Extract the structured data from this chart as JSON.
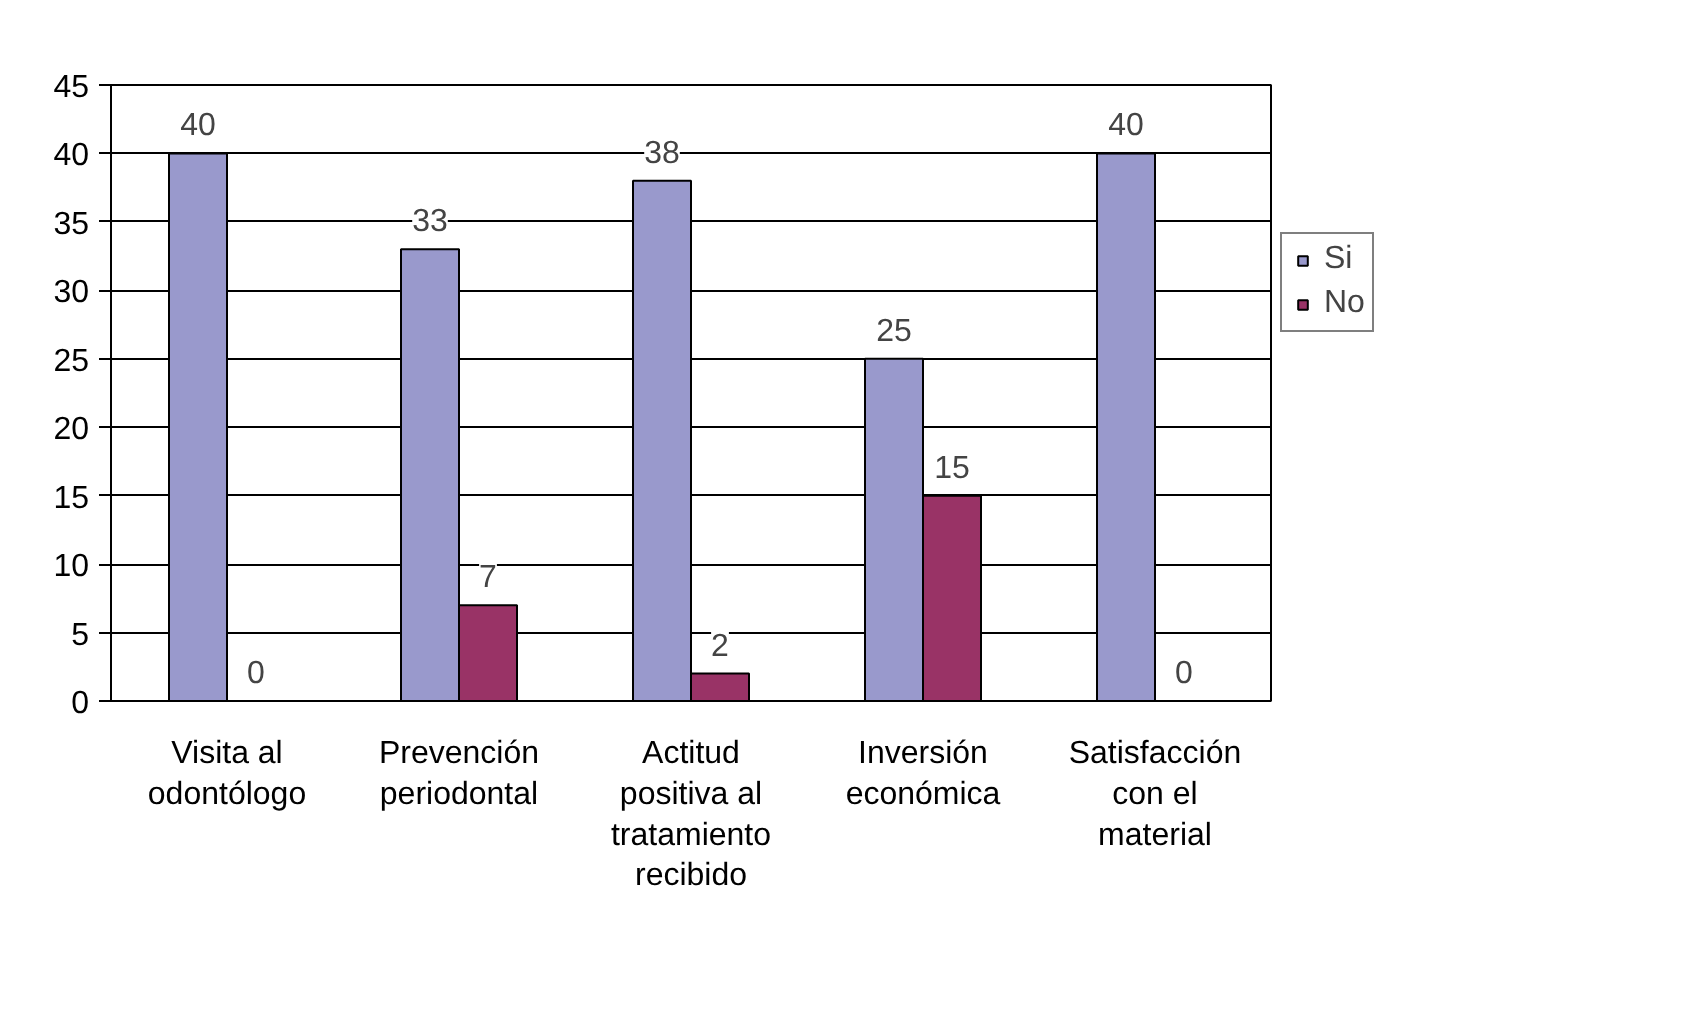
{
  "chart_data": {
    "type": "bar",
    "categories": [
      "Visita al\nodontólogo",
      "Prevención\nperiodontal",
      "Actitud\npositiva al\ntratamiento\nrecibido",
      "Inversión\neconómica",
      "Satisfacción\ncon el\nmaterial"
    ],
    "series": [
      {
        "name": "Si",
        "color": "#9999cc",
        "values": [
          40,
          33,
          38,
          25,
          40
        ]
      },
      {
        "name": "No",
        "color": "#993366",
        "values": [
          0,
          7,
          2,
          15,
          0
        ]
      }
    ],
    "ylim": [
      0,
      45
    ],
    "yticks": [
      0,
      5,
      10,
      15,
      20,
      25,
      30,
      35,
      40,
      45
    ],
    "grid": "y",
    "legend": "right",
    "data_labels": true
  }
}
